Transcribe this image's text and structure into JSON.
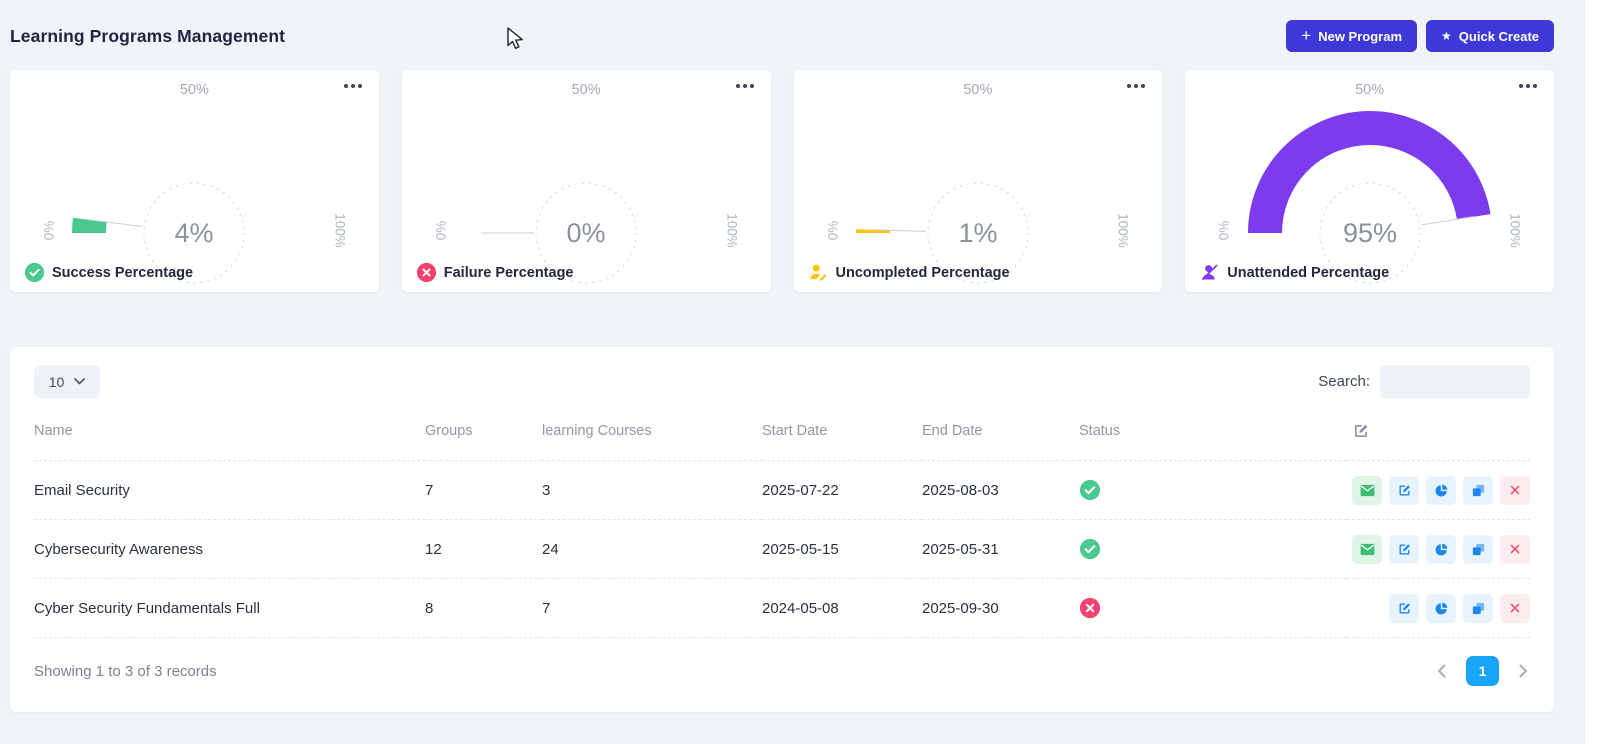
{
  "page": {
    "title": "Learning Programs Management"
  },
  "header": {
    "new_program_label": "New Program",
    "quick_create_label": "Quick Create"
  },
  "colors": {
    "primary_button": "#3e38d8",
    "pagination_active": "#18a6fb",
    "success": "#4cc98f",
    "danger": "#f2426e",
    "warning": "#fdc411",
    "purple": "#7c3bed",
    "action_blue": "#1d87ea",
    "mail_green": "#3dbd72"
  },
  "gauges": {
    "top_label": "50%",
    "left_label": "0%",
    "right_label": "100%",
    "menu_icon": "more-dots",
    "cards": [
      {
        "label": "Success Percentage",
        "value": 4,
        "value_label": "4%",
        "color": "#4cc98f",
        "icon": "check-circle"
      },
      {
        "label": "Failure Percentage",
        "value": 0,
        "value_label": "0%",
        "color": "#f2426e",
        "icon": "x-circle"
      },
      {
        "label": "Uncompleted Percentage",
        "value": 1,
        "value_label": "1%",
        "color": "#fdc411",
        "icon": "user-edit"
      },
      {
        "label": "Unattended Percentage",
        "value": 95,
        "value_label": "95%",
        "color": "#7c3bed",
        "icon": "user-slash"
      }
    ]
  },
  "chart_data": [
    {
      "type": "gauge",
      "title": "Success Percentage",
      "value": 4,
      "min": 0,
      "max": 100,
      "unit": "%",
      "ticks": [
        "0%",
        "50%",
        "100%"
      ],
      "color": "#4cc98f"
    },
    {
      "type": "gauge",
      "title": "Failure Percentage",
      "value": 0,
      "min": 0,
      "max": 100,
      "unit": "%",
      "ticks": [
        "0%",
        "50%",
        "100%"
      ],
      "color": "#f2426e"
    },
    {
      "type": "gauge",
      "title": "Uncompleted Percentage",
      "value": 1,
      "min": 0,
      "max": 100,
      "unit": "%",
      "ticks": [
        "0%",
        "50%",
        "100%"
      ],
      "color": "#fdc411"
    },
    {
      "type": "gauge",
      "title": "Unattended Percentage",
      "value": 95,
      "min": 0,
      "max": 100,
      "unit": "%",
      "ticks": [
        "0%",
        "50%",
        "100%"
      ],
      "color": "#7c3bed"
    }
  ],
  "table": {
    "page_size": "10",
    "search_label": "Search:",
    "search_value": "",
    "columns": [
      "Name",
      "Groups",
      "learning Courses",
      "Start Date",
      "End Date",
      "Status"
    ],
    "rows": [
      {
        "name": "Email Security",
        "groups": "7",
        "courses": "3",
        "start_date": "2025-07-22",
        "end_date": "2025-08-03",
        "status": "success",
        "actions": [
          "mail",
          "edit",
          "pie-chart",
          "copy",
          "delete"
        ]
      },
      {
        "name": "Cybersecurity Awareness",
        "groups": "12",
        "courses": "24",
        "start_date": "2025-05-15",
        "end_date": "2025-05-31",
        "status": "success",
        "actions": [
          "mail",
          "edit",
          "pie-chart",
          "copy",
          "delete"
        ]
      },
      {
        "name": "Cyber Security Fundamentals Full",
        "groups": "8",
        "courses": "7",
        "start_date": "2024-05-08",
        "end_date": "2025-09-30",
        "status": "failure",
        "actions": [
          "edit",
          "pie-chart",
          "copy",
          "delete"
        ]
      }
    ],
    "footer": {
      "summary": "Showing 1 to 3 of 3 records",
      "current_page": "1"
    }
  }
}
